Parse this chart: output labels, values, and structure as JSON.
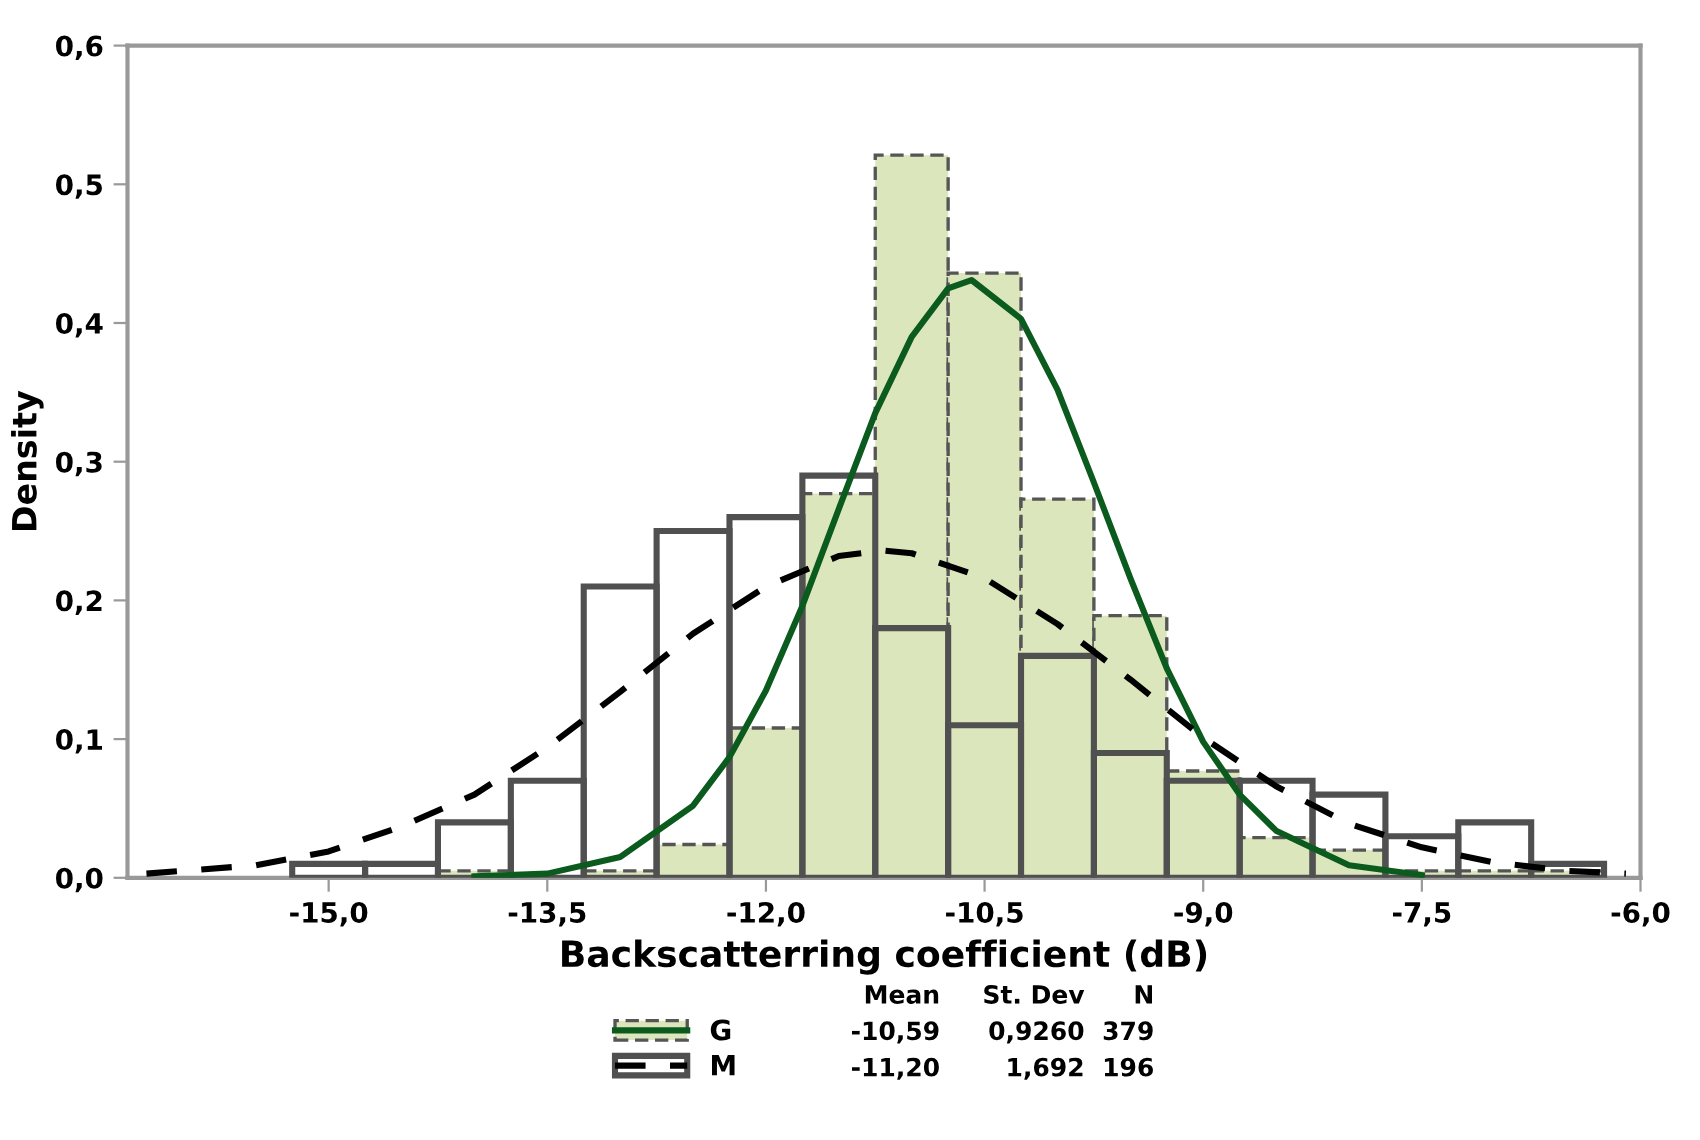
{
  "chart_data": {
    "type": "histogram",
    "xlabel": "Backscatterring coefficient (dB)",
    "ylabel": "Density",
    "bins": [
      -15.25,
      -14.75,
      -14.25,
      -13.75,
      -13.25,
      -12.75,
      -12.25,
      -11.75,
      -11.25,
      -10.75,
      -10.25,
      -9.75,
      -9.25,
      -8.75,
      -8.25,
      -7.75,
      -7.25,
      -6.75,
      -6.25
    ],
    "series": [
      {
        "name": "G",
        "color": "#dce6bd",
        "line_style": "dashed",
        "values": [
          null,
          null,
          0.005,
          null,
          0.005,
          0.024,
          0.108,
          0.277,
          0.521,
          0.436,
          0.273,
          0.189,
          0.077,
          0.029,
          0.02,
          0.005,
          0.005,
          0.005
        ]
      },
      {
        "name": "M",
        "color": "#505050",
        "line_style": "solid",
        "values": [
          0.01,
          0.01,
          0.04,
          0.07,
          0.21,
          0.25,
          0.26,
          0.29,
          0.18,
          0.11,
          0.16,
          0.09,
          0.07,
          0.07,
          0.06,
          0.03,
          0.04,
          0.01
        ]
      },
      {
        "type": "line",
        "color": "#0b5a1e",
        "line_style": "solid",
        "x": [
          -14.0,
          -13.5,
          -13.0,
          -12.5,
          -12.25,
          -12.0,
          -11.75,
          -11.5,
          -11.25,
          -11.0,
          -10.75,
          -10.59,
          -10.25,
          -10.0,
          -9.75,
          -9.5,
          -9.25,
          -9.0,
          -8.75,
          -8.5,
          -8.0,
          -7.5
        ],
        "values": [
          0.001,
          0.003,
          0.015,
          0.052,
          0.087,
          0.135,
          0.196,
          0.266,
          0.335,
          0.39,
          0.425,
          0.431,
          0.403,
          0.352,
          0.285,
          0.216,
          0.151,
          0.098,
          0.06,
          0.034,
          0.009,
          0.002
        ]
      },
      {
        "type": "line",
        "color": "#000000",
        "line_style": "dashed",
        "x": [
          -16.25,
          -15.5,
          -15.0,
          -14.5,
          -14.0,
          -13.5,
          -13.0,
          -12.5,
          -12.0,
          -11.5,
          -11.2,
          -11.0,
          -10.5,
          -10.0,
          -9.5,
          -9.0,
          -8.5,
          -8.0,
          -7.5,
          -7.0,
          -6.5,
          -6.1
        ],
        "values": [
          0.003,
          0.009,
          0.019,
          0.037,
          0.06,
          0.094,
          0.134,
          0.176,
          0.21,
          0.232,
          0.236,
          0.234,
          0.216,
          0.183,
          0.143,
          0.101,
          0.066,
          0.039,
          0.022,
          0.011,
          0.005,
          0.003
        ]
      }
    ],
    "xlim": [
      -16.38,
      -6.0
    ],
    "ylim": [
      0,
      0.6
    ],
    "xticks": [
      {
        "value": -15,
        "label": "-15,0"
      },
      {
        "value": -13.5,
        "label": "-13,5"
      },
      {
        "value": -12,
        "label": "-12,0"
      },
      {
        "value": -10.5,
        "label": "-10,5"
      },
      {
        "value": -9,
        "label": "-9,0"
      },
      {
        "value": -7.5,
        "label": "-7,5"
      },
      {
        "value": -6,
        "label": "-6,0"
      }
    ],
    "yticks": [
      {
        "value": 0,
        "label": "0,0"
      },
      {
        "value": 0.1,
        "label": "0,1"
      },
      {
        "value": 0.2,
        "label": "0,2"
      },
      {
        "value": 0.3,
        "label": "0,3"
      },
      {
        "value": 0.4,
        "label": "0,4"
      },
      {
        "value": 0.5,
        "label": "0,5"
      },
      {
        "value": 0.6,
        "label": "0,6"
      }
    ],
    "grid": false,
    "legend": "bottom",
    "annotations": [
      "Mean",
      "St. Dev",
      "N",
      "-10,59",
      "0,9260",
      "379",
      "-11,20",
      "1,692",
      "196"
    ]
  }
}
